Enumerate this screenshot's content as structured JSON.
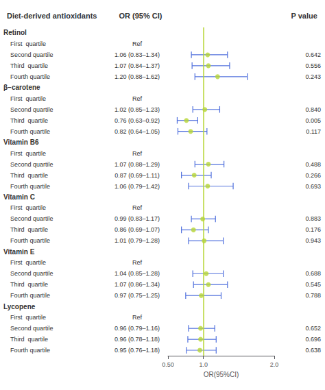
{
  "chart_data": {
    "type": "forest",
    "columns": [
      "Diet-derived antioxidants",
      "OR (95% CI)",
      "P value"
    ],
    "xlabel": "OR(95%CI)",
    "sections": [
      {
        "name": "Retinol",
        "rows": [
          {
            "label": "First  quartile",
            "value": null,
            "low": null,
            "high": null,
            "value_label": "Ref",
            "p": null
          },
          {
            "label": "Second quartile",
            "value": 1.06,
            "low": 0.83,
            "high": 1.34,
            "value_label": "1.06 (0.83–1.34)",
            "p": "0.642"
          },
          {
            "label": "Third  quartile",
            "value": 1.07,
            "low": 0.84,
            "high": 1.37,
            "value_label": "1.07 (0.84–1.37)",
            "p": "0.556"
          },
          {
            "label": "Fourth quartile",
            "value": 1.2,
            "low": 0.88,
            "high": 1.62,
            "value_label": "1.20 (0.88–1.62)",
            "p": "0.243"
          }
        ]
      },
      {
        "name": "β−carotene",
        "rows": [
          {
            "label": "First  quartile",
            "value": null,
            "low": null,
            "high": null,
            "value_label": "Ref",
            "p": null
          },
          {
            "label": "Second quartile",
            "value": 1.02,
            "low": 0.85,
            "high": 1.23,
            "value_label": "1.02 (0.85–1.23)",
            "p": "0.840"
          },
          {
            "label": "Third  quartile",
            "value": 0.76,
            "low": 0.63,
            "high": 0.92,
            "value_label": "0.76 (0.63–0.92)",
            "p": "0.005"
          },
          {
            "label": "Fourth quartile",
            "value": 0.82,
            "low": 0.64,
            "high": 1.05,
            "value_label": "0.82 (0.64–1.05)",
            "p": "0.117"
          }
        ]
      },
      {
        "name": "Vitamin B6",
        "rows": [
          {
            "label": "First  quartile",
            "value": null,
            "low": null,
            "high": null,
            "value_label": "Ref",
            "p": null
          },
          {
            "label": "Second quartile",
            "value": 1.07,
            "low": 0.88,
            "high": 1.29,
            "value_label": "1.07 (0.88–1.29)",
            "p": "0.488"
          },
          {
            "label": "Third  quartile",
            "value": 0.87,
            "low": 0.69,
            "high": 1.11,
            "value_label": "0.87 (0.69–1.11)",
            "p": "0.266"
          },
          {
            "label": "Fourth quartile",
            "value": 1.06,
            "low": 0.79,
            "high": 1.42,
            "value_label": "1.06 (0.79–1.42)",
            "p": "0.693"
          }
        ]
      },
      {
        "name": "Vitamin C",
        "rows": [
          {
            "label": "First  quartile",
            "value": null,
            "low": null,
            "high": null,
            "value_label": "Ref",
            "p": null
          },
          {
            "label": "Second quartile",
            "value": 0.99,
            "low": 0.83,
            "high": 1.17,
            "value_label": "0.99 (0.83–1.17)",
            "p": "0.883"
          },
          {
            "label": "Third  quartile",
            "value": 0.86,
            "low": 0.69,
            "high": 1.07,
            "value_label": "0.86 (0.69–1.07)",
            "p": "0.176"
          },
          {
            "label": "Fourth quartile",
            "value": 1.01,
            "low": 0.79,
            "high": 1.28,
            "value_label": "1.01 (0.79–1.28)",
            "p": "0.943"
          }
        ]
      },
      {
        "name": "Vitamin E",
        "rows": [
          {
            "label": "First  quartile",
            "value": null,
            "low": null,
            "high": null,
            "value_label": "Ref",
            "p": null
          },
          {
            "label": "Second quartile",
            "value": 1.04,
            "low": 0.85,
            "high": 1.28,
            "value_label": "1.04 (0.85–1.28)",
            "p": "0.688"
          },
          {
            "label": "Third  quartile",
            "value": 1.07,
            "low": 0.86,
            "high": 1.34,
            "value_label": "1.07 (0.86–1.34)",
            "p": "0.545"
          },
          {
            "label": "Fourth quartile",
            "value": 0.97,
            "low": 0.75,
            "high": 1.25,
            "value_label": "0.97 (0.75–1.25)",
            "p": "0.788"
          }
        ]
      },
      {
        "name": "Lycopene",
        "rows": [
          {
            "label": "First  quartile",
            "value": null,
            "low": null,
            "high": null,
            "value_label": "Ref",
            "p": null
          },
          {
            "label": "Second quartile",
            "value": 0.96,
            "low": 0.79,
            "high": 1.16,
            "value_label": "0.96 (0.79–1.16)",
            "p": "0.652"
          },
          {
            "label": "Third  quartile",
            "value": 0.96,
            "low": 0.78,
            "high": 1.18,
            "value_label": "0.96 (0.78–1.18)",
            "p": "0.696"
          },
          {
            "label": "Fourth quartile",
            "value": 0.95,
            "low": 0.76,
            "high": 1.18,
            "value_label": "0.95 (0.76–1.18)",
            "p": "0.638"
          }
        ]
      }
    ],
    "xlim": [
      0.5,
      2.0
    ],
    "xticks": [
      {
        "value": 0.5,
        "label": "0.50"
      },
      {
        "value": 1.0,
        "label": "1.0"
      },
      {
        "value": 2.0,
        "label": "2.0"
      }
    ],
    "reference_line": 1.0,
    "grid": false
  }
}
